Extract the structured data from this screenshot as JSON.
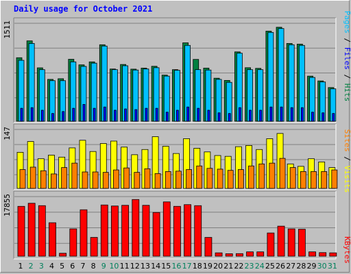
{
  "title": "Daily usage for October 2021",
  "colors": {
    "hits": "#008040",
    "files": "#00c0ff",
    "pages": "#0000ff",
    "visits": "#ffff00",
    "sites": "#ff8000",
    "kbytes": "#ff0000",
    "weekend_label": "#00805c",
    "weekday_label": "#000000",
    "title": "#0000ff"
  },
  "chart_data": [
    {
      "type": "bar",
      "name": "hits-files-pages",
      "categories": [
        "1",
        "2",
        "3",
        "4",
        "5",
        "6",
        "7",
        "8",
        "9",
        "10",
        "11",
        "12",
        "13",
        "14",
        "15",
        "16",
        "17",
        "18",
        "19",
        "20",
        "21",
        "22",
        "23",
        "24",
        "25",
        "26",
        "27",
        "28",
        "29",
        "30",
        "31"
      ],
      "weekend_days": [
        "2",
        "3",
        "9",
        "10",
        "16",
        "17",
        "23",
        "24",
        "30",
        "31"
      ],
      "ymax_label": "1511",
      "ymax": 1511,
      "series": [
        {
          "name": "Hits",
          "values": [
            980,
            1240,
            824,
            646,
            656,
            956,
            870,
            916,
            1180,
            806,
            876,
            804,
            820,
            848,
            712,
            796,
            1210,
            954,
            820,
            664,
            630,
            1070,
            826,
            816,
            1390,
            1450,
            1200,
            1190,
            696,
            622,
            520
          ]
        },
        {
          "name": "Files",
          "values": [
            940,
            1200,
            796,
            626,
            626,
            916,
            846,
            896,
            1160,
            796,
            856,
            790,
            806,
            826,
            696,
            786,
            1170,
            796,
            790,
            646,
            600,
            1050,
            796,
            796,
            1370,
            1430,
            1180,
            1170,
            676,
            606,
            500
          ]
        },
        {
          "name": "Pages",
          "values": [
            200,
            210,
            170,
            120,
            150,
            200,
            260,
            200,
            220,
            170,
            190,
            180,
            200,
            200,
            140,
            170,
            220,
            200,
            170,
            130,
            120,
            210,
            170,
            170,
            220,
            220,
            210,
            210,
            140,
            130,
            120
          ]
        }
      ],
      "legend": [
        "Pages",
        "Files",
        "Hits"
      ]
    },
    {
      "type": "bar",
      "name": "visits-sites",
      "categories": [
        "1",
        "2",
        "3",
        "4",
        "5",
        "6",
        "7",
        "8",
        "9",
        "10",
        "11",
        "12",
        "13",
        "14",
        "15",
        "16",
        "17",
        "18",
        "19",
        "20",
        "21",
        "22",
        "23",
        "24",
        "25",
        "26",
        "27",
        "28",
        "29",
        "30",
        "31"
      ],
      "ymax_label": "147",
      "ymax": 147,
      "series": [
        {
          "name": "Visits",
          "values": [
            90,
            117,
            74,
            83,
            78,
            101,
            120,
            92,
            112,
            118,
            103,
            84,
            97,
            129,
            105,
            87,
            124,
            100,
            91,
            82,
            80,
            104,
            107,
            97,
            124,
            137,
            61,
            55,
            74,
            66,
            52
          ]
        },
        {
          "name": "Sites",
          "values": [
            47,
            53,
            44,
            36,
            52,
            63,
            41,
            41,
            40,
            46,
            51,
            40,
            49,
            37,
            42,
            43,
            47,
            56,
            50,
            48,
            45,
            47,
            56,
            61,
            63,
            75,
            52,
            42,
            42,
            42,
            46
          ]
        }
      ],
      "legend": [
        "Sites",
        "Visits"
      ]
    },
    {
      "type": "bar",
      "name": "kbytes",
      "categories": [
        "1",
        "2",
        "3",
        "4",
        "5",
        "6",
        "7",
        "8",
        "9",
        "10",
        "11",
        "12",
        "13",
        "14",
        "15",
        "16",
        "17",
        "18",
        "19",
        "20",
        "21",
        "22",
        "23",
        "24",
        "25",
        "26",
        "27",
        "28",
        "29",
        "30",
        "31"
      ],
      "ymax_label": "17855",
      "ymax": 17855,
      "series": [
        {
          "name": "KBytes",
          "values": [
            14600,
            15500,
            14800,
            9800,
            860,
            8000,
            13600,
            5500,
            15000,
            14700,
            14900,
            16600,
            14900,
            12800,
            15900,
            14600,
            15100,
            14800,
            5500,
            980,
            720,
            750,
            1270,
            1270,
            6800,
            8800,
            8000,
            7900,
            1270,
            1050,
            980
          ]
        }
      ],
      "legend": [
        "KBytes"
      ]
    }
  ]
}
